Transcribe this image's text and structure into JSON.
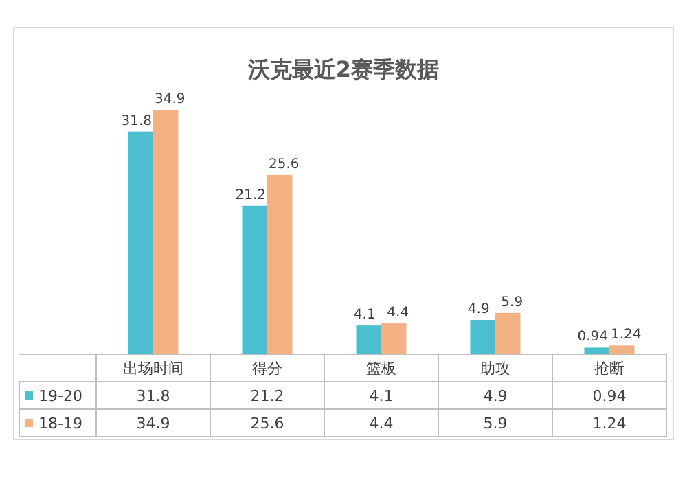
{
  "chart_data": {
    "type": "bar",
    "title": "沃克最近2赛季数据",
    "categories": [
      "出场时间",
      "得分",
      "篮板",
      "助攻",
      "抢断"
    ],
    "series": [
      {
        "name": "19-20",
        "color": "#4bbfcf",
        "values": [
          31.8,
          21.2,
          4.1,
          4.9,
          0.94
        ],
        "value_labels": [
          "31.8",
          "21.2",
          "4.1",
          "4.9",
          "0.94"
        ]
      },
      {
        "name": "18-19",
        "color": "#f4b183",
        "values": [
          34.9,
          25.6,
          4.4,
          5.9,
          1.24
        ],
        "value_labels": [
          "34.9",
          "25.6",
          "4.4",
          "5.9",
          "1.24"
        ]
      }
    ],
    "annotations": [
      "31.8",
      "21.2",
      "4.1",
      "4.9",
      "0.94",
      "34.9",
      "25.6",
      "4.4",
      "5.9",
      "1.24"
    ],
    "legend": "bottom",
    "grid": false
  }
}
